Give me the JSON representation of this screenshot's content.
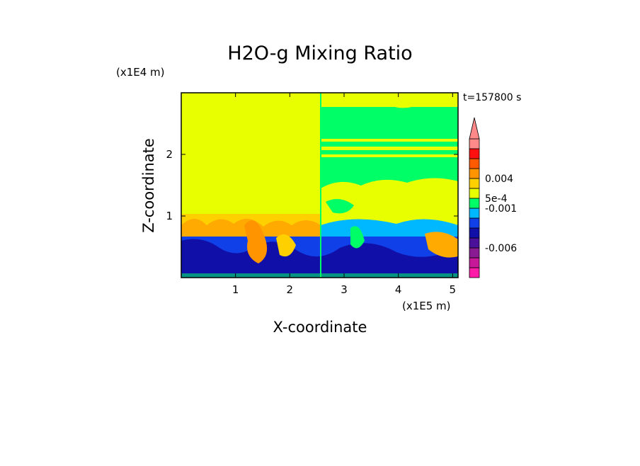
{
  "chart_data": {
    "type": "heatmap",
    "title": "H2O-g Mixing Ratio",
    "xlabel": "X-coordinate",
    "ylabel": "Z-coordinate",
    "x_unit": "(x1E5 m)",
    "y_unit": "(x1E4 m)",
    "time_label": "t=157800 s",
    "xlim": [
      0,
      5.1
    ],
    "ylim": [
      0,
      3.0
    ],
    "x_ticks": [
      1,
      2,
      3,
      4,
      5
    ],
    "y_ticks": [
      1,
      2
    ],
    "grid": false,
    "colorbar": {
      "placement": "right",
      "extend": "top",
      "tick_labels": [
        {
          "label": "0.004",
          "value": 0.004
        },
        {
          "label": "5e-4",
          "value": 0.0005
        },
        {
          "label": "-0.001",
          "value": -0.001
        },
        {
          "label": "-0.006",
          "value": -0.006
        }
      ],
      "colors": [
        "#ff1aa8",
        "#c8189a",
        "#8a1a92",
        "#4a109a",
        "#1010a8",
        "#1040e8",
        "#00b8ff",
        "#00ff66",
        "#e8ff00",
        "#ffd000",
        "#ff9400",
        "#ff5a00",
        "#ff1010",
        "#ff8a8a",
        "#ff8888"
      ]
    },
    "regions": [
      {
        "x": [
          0,
          2.55
        ],
        "z": [
          1.03,
          3.0
        ],
        "level": "yellow"
      },
      {
        "x": [
          0,
          2.55
        ],
        "z": [
          0.73,
          1.03
        ],
        "level": "orange-yellow"
      },
      {
        "x": [
          0,
          5.1
        ],
        "z": [
          0,
          0.73
        ],
        "level": "dark-blue"
      },
      {
        "x": [
          2.55,
          5.1
        ],
        "z": [
          1.3,
          3.0
        ],
        "level": "green"
      }
    ]
  }
}
